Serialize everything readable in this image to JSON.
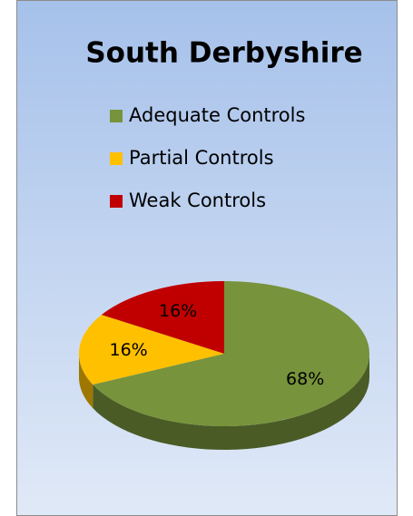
{
  "chart_data": {
    "type": "pie",
    "title": "South Derbyshire",
    "categories": [
      "Adequate Controls",
      "Partial Controls",
      "Weak Controls"
    ],
    "values": [
      68,
      16,
      16
    ],
    "value_labels": [
      "68%",
      "16%",
      "16%"
    ],
    "colors": [
      "#77933c",
      "#ffc000",
      "#c00000"
    ]
  }
}
